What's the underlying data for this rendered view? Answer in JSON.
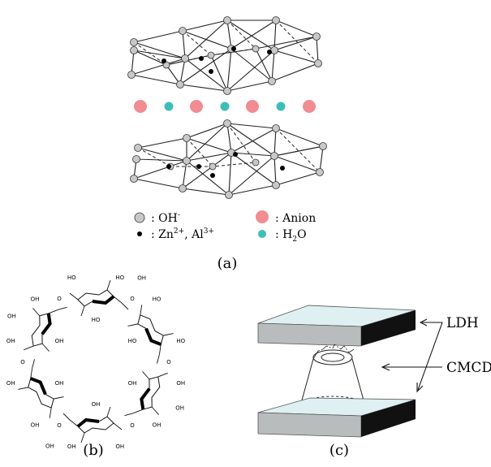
{
  "panel_a": {
    "legend": {
      "oh_label": ": OH",
      "oh_sup": "-",
      "metal_label": ": Zn",
      "metal_sup1": "2+",
      "metal_mid": ", Al",
      "metal_sup2": "3+",
      "anion_label": ": Anion",
      "water_label": ": H",
      "water_sub": "2",
      "water_tail": "O"
    },
    "caption": "(a)",
    "colors": {
      "oh": "#c8c8c8",
      "metal": "#000000",
      "anion": "#f08c92",
      "water": "#3cbfb9"
    }
  },
  "panel_b": {
    "caption": "(b)",
    "ring_text": [
      "HO",
      "HO",
      "HO",
      "HO",
      "HO",
      "HO",
      "OH",
      "OH",
      "OH",
      "OH",
      "OH",
      "OH",
      "OH",
      "OH",
      "OH",
      "OH",
      "OH",
      "OH",
      "OH",
      "OH",
      "OH",
      "OH"
    ]
  },
  "panel_c": {
    "caption": "(c)",
    "label_ldh": "LDH",
    "label_cmcd": "CMCD",
    "colors": {
      "plate_top": "#dff0f3",
      "plate_front": "#b9bcbd",
      "plate_side": "#111111"
    }
  }
}
